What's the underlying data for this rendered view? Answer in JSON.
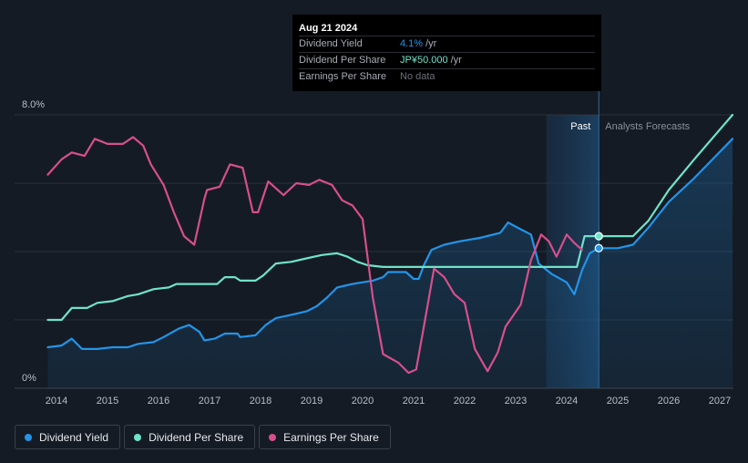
{
  "tooltip": {
    "date": "Aug 21 2024",
    "rows": [
      {
        "label": "Dividend Yield",
        "value": "4.1%",
        "unit": "/yr"
      },
      {
        "label": "Dividend Per Share",
        "value": "JP¥50.000",
        "unit": "/yr"
      },
      {
        "label": "Earnings Per Share",
        "value": "No data",
        "unit": ""
      }
    ]
  },
  "regions": {
    "past": "Past",
    "forecast": "Analysts Forecasts"
  },
  "legend": [
    {
      "label": "Dividend Yield",
      "color": "#2394e8"
    },
    {
      "label": "Dividend Per Share",
      "color": "#6fe3c9"
    },
    {
      "label": "Earnings Per Share",
      "color": "#d64f8c"
    }
  ],
  "chart_data": {
    "type": "line",
    "xlim": [
      2013.75,
      2027.25
    ],
    "ylim": [
      0,
      8
    ],
    "y_tick_labels": [
      {
        "value": 8,
        "label": "8.0%"
      },
      {
        "value": 0,
        "label": "0%"
      }
    ],
    "x_ticks": [
      2014,
      2015,
      2016,
      2017,
      2018,
      2019,
      2020,
      2021,
      2022,
      2023,
      2024,
      2025,
      2026,
      2027
    ],
    "gridlines": [
      0,
      2,
      4,
      6,
      8
    ],
    "grid": true,
    "past_shade": [
      2023.6,
      2024.63
    ],
    "cursor_x": 2024.63,
    "series": [
      {
        "name": "Dividend Yield",
        "color": "#2394e8",
        "fill": true,
        "points": [
          [
            2013.83,
            1.2
          ],
          [
            2014.1,
            1.25
          ],
          [
            2014.3,
            1.45
          ],
          [
            2014.5,
            1.15
          ],
          [
            2014.8,
            1.15
          ],
          [
            2015.1,
            1.2
          ],
          [
            2015.4,
            1.2
          ],
          [
            2015.6,
            1.3
          ],
          [
            2015.9,
            1.35
          ],
          [
            2016.1,
            1.5
          ],
          [
            2016.4,
            1.75
          ],
          [
            2016.6,
            1.85
          ],
          [
            2016.8,
            1.65
          ],
          [
            2016.9,
            1.4
          ],
          [
            2017.1,
            1.45
          ],
          [
            2017.3,
            1.6
          ],
          [
            2017.55,
            1.6
          ],
          [
            2017.6,
            1.5
          ],
          [
            2017.9,
            1.55
          ],
          [
            2018.1,
            1.85
          ],
          [
            2018.3,
            2.05
          ],
          [
            2018.6,
            2.15
          ],
          [
            2018.9,
            2.25
          ],
          [
            2019.1,
            2.4
          ],
          [
            2019.3,
            2.65
          ],
          [
            2019.5,
            2.95
          ],
          [
            2019.8,
            3.05
          ],
          [
            2020.2,
            3.15
          ],
          [
            2020.4,
            3.25
          ],
          [
            2020.5,
            3.4
          ],
          [
            2020.85,
            3.4
          ],
          [
            2021.0,
            3.2
          ],
          [
            2021.1,
            3.2
          ],
          [
            2021.2,
            3.6
          ],
          [
            2021.35,
            4.05
          ],
          [
            2021.6,
            4.2
          ],
          [
            2021.9,
            4.3
          ],
          [
            2022.3,
            4.4
          ],
          [
            2022.7,
            4.55
          ],
          [
            2022.85,
            4.85
          ],
          [
            2023.1,
            4.65
          ],
          [
            2023.3,
            4.5
          ],
          [
            2023.45,
            3.65
          ],
          [
            2023.7,
            3.35
          ],
          [
            2024.0,
            3.1
          ],
          [
            2024.15,
            2.75
          ],
          [
            2024.3,
            3.45
          ],
          [
            2024.45,
            3.95
          ],
          [
            2024.63,
            4.1
          ],
          [
            2025.0,
            4.1
          ],
          [
            2025.3,
            4.2
          ],
          [
            2025.6,
            4.7
          ],
          [
            2026.0,
            5.45
          ],
          [
            2026.5,
            6.15
          ],
          [
            2027.25,
            7.3
          ]
        ]
      },
      {
        "name": "Dividend Per Share",
        "color": "#6fe3c9",
        "fill": false,
        "points": [
          [
            2013.83,
            2.0
          ],
          [
            2014.1,
            2.0
          ],
          [
            2014.3,
            2.35
          ],
          [
            2014.6,
            2.35
          ],
          [
            2014.8,
            2.5
          ],
          [
            2015.1,
            2.55
          ],
          [
            2015.4,
            2.7
          ],
          [
            2015.6,
            2.75
          ],
          [
            2015.9,
            2.9
          ],
          [
            2016.2,
            2.95
          ],
          [
            2016.35,
            3.05
          ],
          [
            2016.6,
            3.05
          ],
          [
            2017.15,
            3.05
          ],
          [
            2017.3,
            3.25
          ],
          [
            2017.5,
            3.25
          ],
          [
            2017.6,
            3.15
          ],
          [
            2017.9,
            3.15
          ],
          [
            2018.05,
            3.3
          ],
          [
            2018.3,
            3.65
          ],
          [
            2018.6,
            3.7
          ],
          [
            2018.9,
            3.8
          ],
          [
            2019.2,
            3.9
          ],
          [
            2019.5,
            3.95
          ],
          [
            2019.7,
            3.85
          ],
          [
            2019.9,
            3.7
          ],
          [
            2020.1,
            3.6
          ],
          [
            2020.4,
            3.55
          ],
          [
            2021.2,
            3.55
          ],
          [
            2022.5,
            3.55
          ],
          [
            2024.2,
            3.55
          ],
          [
            2024.35,
            4.45
          ],
          [
            2024.63,
            4.45
          ],
          [
            2025.3,
            4.45
          ],
          [
            2025.6,
            4.9
          ],
          [
            2026.0,
            5.8
          ],
          [
            2026.5,
            6.7
          ],
          [
            2027.25,
            8.0
          ]
        ]
      },
      {
        "name": "Earnings Per Share",
        "color": "#d64f8c",
        "fill": false,
        "points": [
          [
            2013.83,
            6.25
          ],
          [
            2014.1,
            6.7
          ],
          [
            2014.3,
            6.9
          ],
          [
            2014.55,
            6.8
          ],
          [
            2014.75,
            7.3
          ],
          [
            2015.0,
            7.15
          ],
          [
            2015.3,
            7.15
          ],
          [
            2015.5,
            7.35
          ],
          [
            2015.7,
            7.1
          ],
          [
            2015.85,
            6.55
          ],
          [
            2016.1,
            5.95
          ],
          [
            2016.3,
            5.15
          ],
          [
            2016.5,
            4.45
          ],
          [
            2016.7,
            4.2
          ],
          [
            2016.9,
            5.55
          ],
          [
            2016.95,
            5.8
          ],
          [
            2017.2,
            5.9
          ],
          [
            2017.4,
            6.55
          ],
          [
            2017.65,
            6.45
          ],
          [
            2017.85,
            5.15
          ],
          [
            2017.95,
            5.15
          ],
          [
            2018.15,
            6.05
          ],
          [
            2018.45,
            5.65
          ],
          [
            2018.7,
            6.0
          ],
          [
            2018.95,
            5.95
          ],
          [
            2019.15,
            6.1
          ],
          [
            2019.4,
            5.95
          ],
          [
            2019.6,
            5.5
          ],
          [
            2019.8,
            5.35
          ],
          [
            2020.0,
            4.95
          ],
          [
            2020.2,
            2.65
          ],
          [
            2020.4,
            1.0
          ],
          [
            2020.7,
            0.75
          ],
          [
            2020.9,
            0.45
          ],
          [
            2021.05,
            0.55
          ],
          [
            2021.2,
            1.8
          ],
          [
            2021.4,
            3.5
          ],
          [
            2021.6,
            3.25
          ],
          [
            2021.8,
            2.75
          ],
          [
            2022.0,
            2.5
          ],
          [
            2022.2,
            1.15
          ],
          [
            2022.45,
            0.5
          ],
          [
            2022.65,
            1.05
          ],
          [
            2022.8,
            1.8
          ],
          [
            2023.1,
            2.45
          ],
          [
            2023.3,
            3.75
          ],
          [
            2023.5,
            4.5
          ],
          [
            2023.65,
            4.3
          ],
          [
            2023.8,
            3.85
          ],
          [
            2024.0,
            4.5
          ],
          [
            2024.15,
            4.25
          ],
          [
            2024.3,
            4.05
          ]
        ]
      }
    ],
    "markers": [
      {
        "series": "Dividend Yield",
        "x": 2024.63,
        "y": 4.1
      },
      {
        "series": "Dividend Per Share",
        "x": 2024.63,
        "y": 4.45
      }
    ]
  }
}
